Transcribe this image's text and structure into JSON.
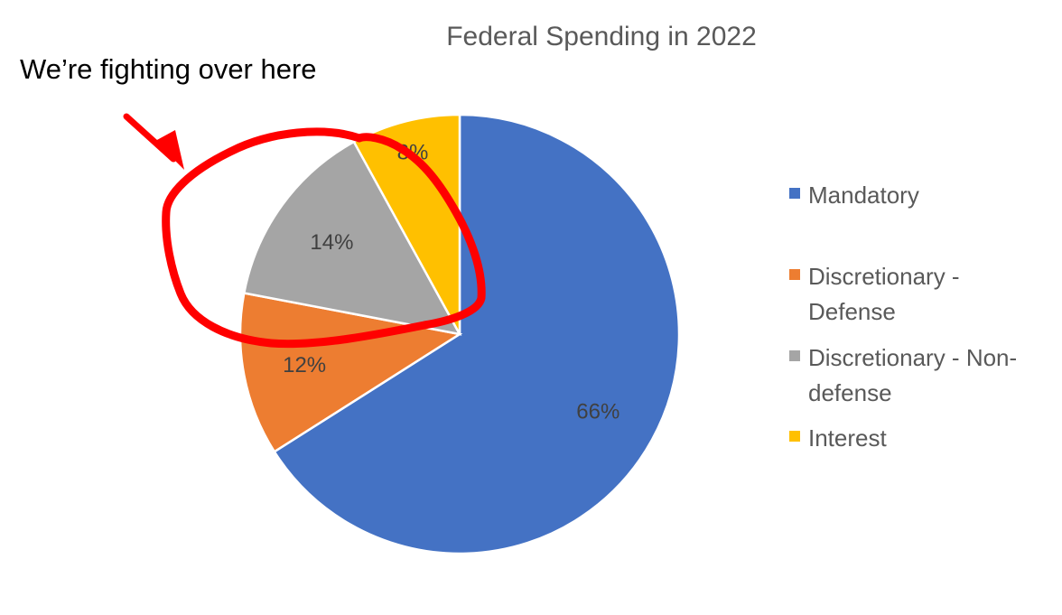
{
  "annotation": {
    "text": "We’re fighting over here",
    "color": "#ff0000"
  },
  "chart_data": {
    "type": "pie",
    "title": "Federal Spending in 2022",
    "categories": [
      "Mandatory",
      "Discretionary - Defense",
      "Discretionary - Non-defense",
      "Interest"
    ],
    "values": [
      66,
      12,
      14,
      8
    ],
    "labels": [
      "66%",
      "12%",
      "14%",
      "8%"
    ],
    "colors": [
      "#4472c4",
      "#ed7d31",
      "#a5a5a5",
      "#ffc000"
    ],
    "legend_lines": [
      [
        "Mandatory"
      ],
      [
        "Discretionary -",
        "Defense"
      ],
      [
        "Discretionary - Non-",
        "defense"
      ],
      [
        "Interest"
      ]
    ],
    "legend_position": "right",
    "start": "12 o'clock, clockwise"
  }
}
